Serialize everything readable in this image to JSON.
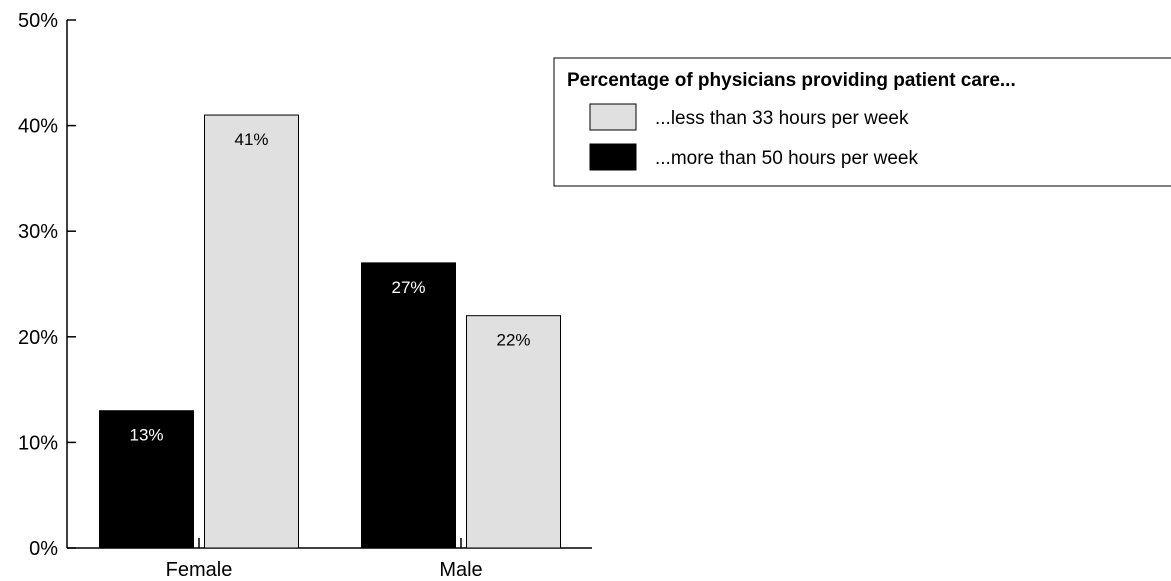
{
  "chart_data": {
    "type": "bar",
    "categories": [
      "Female",
      "Male"
    ],
    "series": [
      {
        "name": "...more than 50 hours per week",
        "values": [
          13,
          27
        ],
        "labels": [
          "13%",
          "27%"
        ],
        "color": "#000000",
        "label_color": "#ffffff"
      },
      {
        "name": "...less than 33 hours per week",
        "values": [
          41,
          22
        ],
        "labels": [
          "41%",
          "22%"
        ],
        "color": "#e0e0e0",
        "label_color": "#000000"
      }
    ],
    "ylim": [
      0,
      50
    ],
    "yticks": [
      0,
      10,
      20,
      30,
      40,
      50
    ],
    "ytick_labels": [
      "0%",
      "10%",
      "20%",
      "30%",
      "40%",
      "50%"
    ],
    "grid": false,
    "legend": {
      "title": "Percentage of physicians providing patient care...",
      "placement": "top-right",
      "entries": [
        {
          "label": "...less than 33 hours per week",
          "color": "#e0e0e0"
        },
        {
          "label": "...more than 50 hours per week",
          "color": "#000000"
        }
      ]
    }
  }
}
